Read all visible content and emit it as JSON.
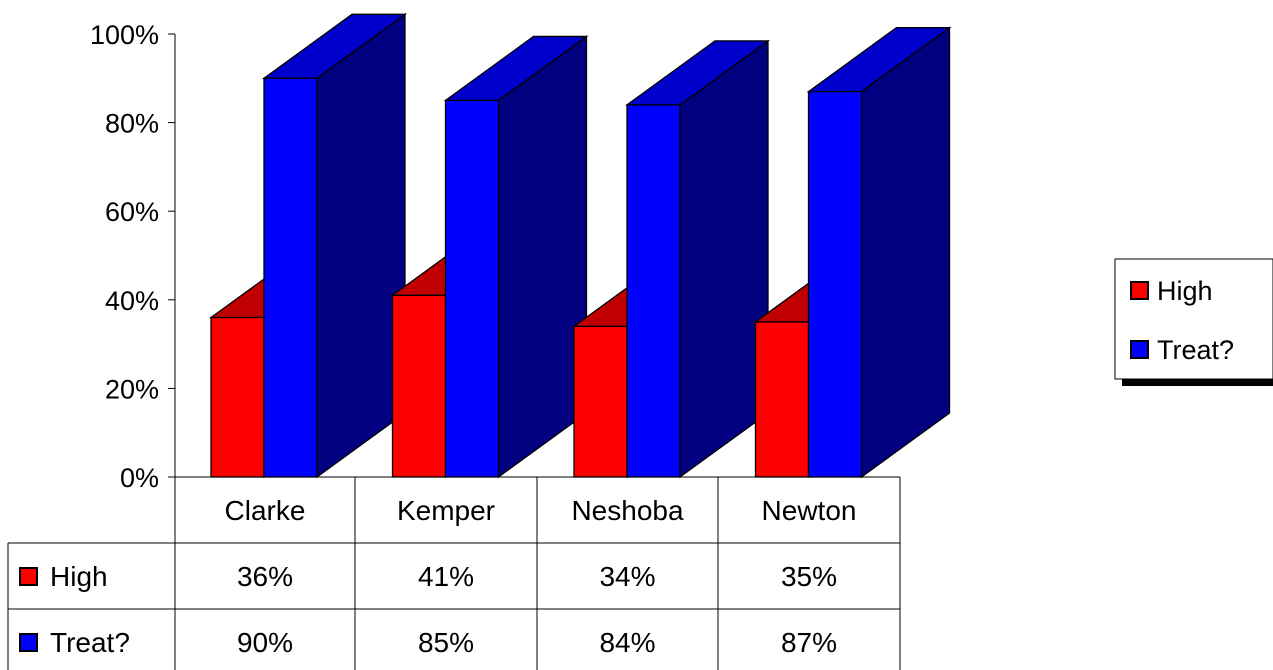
{
  "chart_data": {
    "type": "bar",
    "categories": [
      "Clarke",
      "Kemper",
      "Neshoba",
      "Newton"
    ],
    "series": [
      {
        "name": "High",
        "values": [
          36,
          41,
          34,
          35
        ],
        "labels": [
          "36%",
          "41%",
          "34%",
          "35%"
        ],
        "color": "#ff0000",
        "side_color": "#800000",
        "top_color": "#c00000"
      },
      {
        "name": "Treat?",
        "values": [
          90,
          85,
          84,
          87
        ],
        "labels": [
          "90%",
          "85%",
          "84%",
          "87%"
        ],
        "color": "#0000ff",
        "side_color": "#000080",
        "top_color": "#0000cc"
      }
    ],
    "y_ticks": [
      "0%",
      "20%",
      "40%",
      "60%",
      "80%",
      "100%"
    ],
    "ylim": [
      0,
      100
    ],
    "legend": {
      "placement": "right",
      "entries": [
        "High",
        "Treat?"
      ]
    },
    "data_table": true,
    "grid": false
  }
}
